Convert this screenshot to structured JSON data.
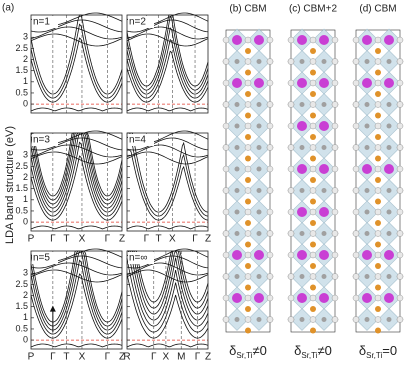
{
  "figure_label": "(a)",
  "y_axis_label": "LDA band structure (eV)",
  "ylim": [
    -0.4,
    4.0
  ],
  "yticks": [
    0,
    0.5,
    1,
    1.5,
    2,
    2.5,
    3
  ],
  "panels": [
    {
      "label": "n=1",
      "kpoints": []
    },
    {
      "label": "n=2",
      "kpoints": []
    },
    {
      "label": "n=3",
      "kpoints": [
        "P",
        "Γ",
        "T",
        "X",
        "Γ",
        "Z"
      ]
    },
    {
      "label": "n=4",
      "kpoints": [
        "Γ",
        "T",
        "X",
        "Γ",
        "Z"
      ]
    },
    {
      "label": "n=5",
      "kpoints": [
        "P",
        "Γ",
        "T",
        "X",
        "Γ",
        "Z"
      ]
    },
    {
      "label": "n=∞",
      "kpoints": [
        "R",
        "Γ",
        "X",
        "M",
        "Γ",
        "Z"
      ]
    }
  ],
  "structures": [
    {
      "title": "(b) CBM",
      "caption": {
        "symbol": "δ",
        "subscript": "Sr,Ti",
        "relation": "≠0"
      }
    },
    {
      "title": "(c) CBM+2",
      "caption": {
        "symbol": "δ",
        "subscript": "Sr,Ti",
        "relation": "≠0"
      }
    },
    {
      "title": "(d) CBM",
      "caption": {
        "symbol": "δ",
        "subscript": "Sr,Ti",
        "relation": "=0"
      }
    }
  ]
}
